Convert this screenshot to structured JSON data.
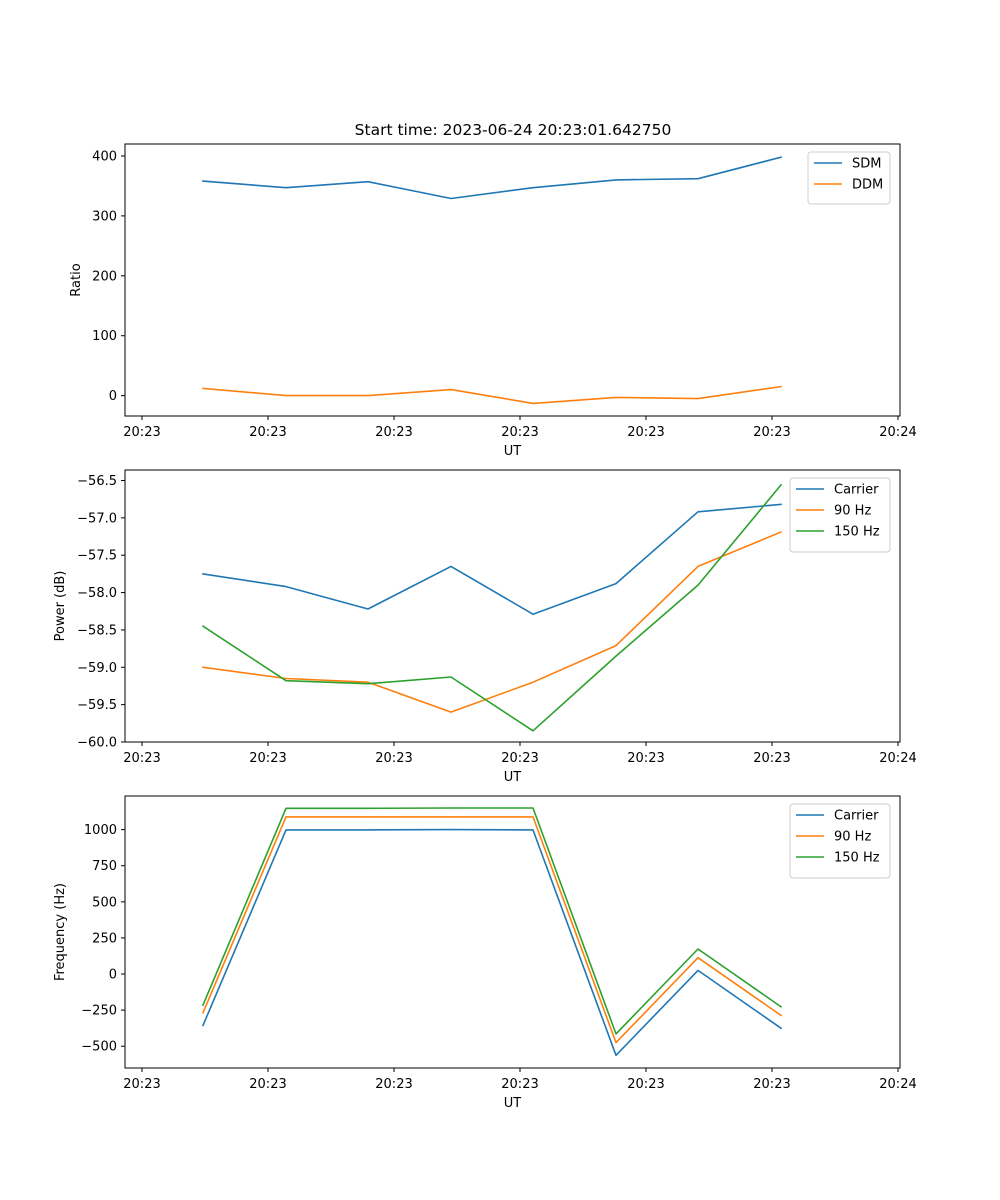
{
  "figure": {
    "title": "Start time: 2023-06-24 20:23:01.642750"
  },
  "chart_data": [
    {
      "type": "line",
      "title": "Start time: 2023-06-24 20:23:01.642750",
      "xlabel": "UT",
      "ylabel": "Ratio",
      "x_tick_labels": [
        "20:23",
        "20:23",
        "20:23",
        "20:23",
        "20:23",
        "20:23",
        "20:24"
      ],
      "y_ticks": [
        0,
        100,
        200,
        300,
        400
      ],
      "ylim": [
        -34,
        420
      ],
      "grid": false,
      "legend_position": "top-right",
      "series": [
        {
          "name": "SDM",
          "color": "#1f77b4",
          "values": [
            358,
            347,
            357,
            329,
            347,
            360,
            362,
            398
          ]
        },
        {
          "name": "DDM",
          "color": "#ff7f0e",
          "values": [
            12,
            0,
            0,
            10,
            -13,
            -3,
            -5,
            15
          ]
        }
      ]
    },
    {
      "type": "line",
      "title": "",
      "xlabel": "UT",
      "ylabel": "Power (dB)",
      "x_tick_labels": [
        "20:23",
        "20:23",
        "20:23",
        "20:23",
        "20:23",
        "20:23",
        "20:24"
      ],
      "y_ticks": [
        -60.0,
        -59.5,
        -59.0,
        -58.5,
        -58.0,
        -57.5,
        -57.0,
        -56.5
      ],
      "y_tick_labels": [
        "−60.0",
        "−59.5",
        "−59.0",
        "−58.5",
        "−58.0",
        "−57.5",
        "−57.0",
        "−56.5"
      ],
      "ylim": [
        -60.0,
        -56.36
      ],
      "grid": false,
      "legend_position": "top-right",
      "series": [
        {
          "name": "Carrier",
          "color": "#1f77b4",
          "values": [
            -57.75,
            -57.92,
            -58.22,
            -57.65,
            -58.29,
            -57.88,
            -56.92,
            -56.82
          ]
        },
        {
          "name": "90 Hz",
          "color": "#ff7f0e",
          "values": [
            -59.0,
            -59.15,
            -59.2,
            -59.6,
            -59.2,
            -58.71,
            -57.65,
            -57.19
          ]
        },
        {
          "name": "150 Hz",
          "color": "#2ca02c",
          "values": [
            -58.45,
            -59.18,
            -59.22,
            -59.13,
            -59.85,
            -58.85,
            -57.9,
            -56.56
          ]
        }
      ]
    },
    {
      "type": "line",
      "title": "",
      "xlabel": "UT",
      "ylabel": "Frequency (Hz)",
      "x_tick_labels": [
        "20:23",
        "20:23",
        "20:23",
        "20:23",
        "20:23",
        "20:23",
        "20:24"
      ],
      "y_ticks": [
        -500,
        -250,
        0,
        250,
        500,
        750,
        1000
      ],
      "y_tick_labels": [
        "−500",
        "−250",
        "0",
        "250",
        "500",
        "750",
        "1000"
      ],
      "ylim": [
        -651,
        1233
      ],
      "grid": false,
      "legend_position": "top-right",
      "series": [
        {
          "name": "Carrier",
          "color": "#1f77b4",
          "values": [
            -356,
            998,
            998,
            1000,
            998,
            -563,
            25,
            -375
          ]
        },
        {
          "name": "90 Hz",
          "color": "#ff7f0e",
          "values": [
            -268,
            1088,
            1088,
            1088,
            1088,
            -475,
            113,
            -287
          ]
        },
        {
          "name": "150 Hz",
          "color": "#2ca02c",
          "values": [
            -215,
            1148,
            1148,
            1150,
            1150,
            -415,
            173,
            -227
          ]
        }
      ]
    }
  ]
}
